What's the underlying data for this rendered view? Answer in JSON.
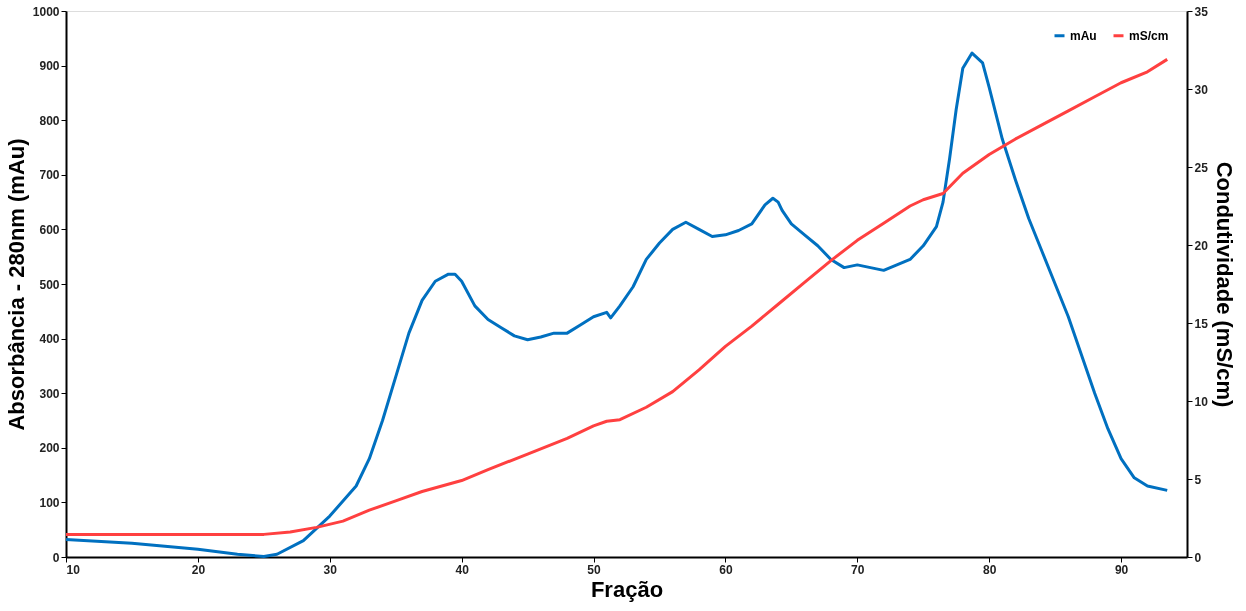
{
  "chart_data": {
    "type": "line",
    "xlabel": "Fração",
    "ylabel": "Absorbância - 280nm (mAu)",
    "y2label": "Condutividade (mS/cm)",
    "xlim": [
      10,
      95
    ],
    "xticks": [
      10,
      20,
      30,
      40,
      50,
      60,
      70,
      80,
      90
    ],
    "ylim": [
      0,
      1000
    ],
    "yticks": [
      0,
      100,
      200,
      300,
      400,
      500,
      600,
      700,
      800,
      900,
      1000
    ],
    "y2lim": [
      0,
      35
    ],
    "y2ticks": [
      0,
      5,
      10,
      15,
      20,
      25,
      30,
      35
    ],
    "grid": false,
    "legend": "top right",
    "marker": "none",
    "line_style": "solid",
    "series": [
      {
        "name": "mAu",
        "color": "#0070c0",
        "axis": "y",
        "x": [
          10,
          15,
          20,
          23,
          25,
          26,
          28,
          30,
          32,
          33,
          34,
          35,
          36,
          37,
          38,
          39,
          39.5,
          40,
          41,
          42,
          43,
          44,
          45,
          46,
          47,
          48,
          49,
          50,
          51,
          51.3,
          52,
          53,
          54,
          55,
          56,
          57,
          58,
          59,
          60,
          61,
          62,
          63,
          63.6,
          64,
          64.3,
          65,
          66,
          67,
          68,
          69,
          70,
          71,
          72,
          73,
          74,
          75,
          76,
          76.5,
          77,
          77.5,
          78,
          78.7,
          79.5,
          80,
          81,
          82,
          83,
          84,
          85,
          86,
          87,
          88,
          89,
          90,
          91,
          92,
          93.5
        ],
        "values": [
          32,
          25,
          14,
          5,
          1,
          5,
          30,
          75,
          130,
          180,
          250,
          330,
          410,
          470,
          505,
          518,
          518,
          505,
          460,
          435,
          420,
          405,
          398,
          403,
          410,
          410,
          425,
          440,
          448,
          438,
          460,
          495,
          545,
          575,
          600,
          613,
          600,
          587,
          590,
          598,
          610,
          645,
          657,
          650,
          635,
          610,
          590,
          570,
          545,
          530,
          535,
          530,
          525,
          535,
          545,
          570,
          605,
          650,
          730,
          820,
          895,
          923,
          905,
          860,
          765,
          690,
          620,
          560,
          500,
          440,
          370,
          300,
          235,
          180,
          145,
          130,
          122
        ]
      },
      {
        "name": "mS/cm",
        "color": "#ff4040",
        "axis": "y2",
        "x": [
          10,
          20,
          25,
          27,
          29,
          31,
          33,
          35,
          37,
          40,
          42,
          45,
          48,
          50,
          51,
          52,
          54,
          56,
          58,
          60,
          62,
          64,
          66,
          68,
          70,
          72,
          74,
          75,
          76.5,
          78,
          80,
          82,
          84,
          86,
          88,
          90,
          92,
          93.5
        ],
        "values": [
          1.45,
          1.45,
          1.45,
          1.6,
          1.9,
          2.3,
          3.0,
          3.6,
          4.2,
          4.9,
          5.6,
          6.6,
          7.6,
          8.4,
          8.7,
          8.8,
          9.6,
          10.6,
          12.0,
          13.5,
          14.8,
          16.2,
          17.6,
          19.0,
          20.3,
          21.4,
          22.5,
          22.9,
          23.3,
          24.6,
          25.8,
          26.8,
          27.7,
          28.6,
          29.5,
          30.4,
          31.1,
          31.9
        ]
      }
    ]
  }
}
